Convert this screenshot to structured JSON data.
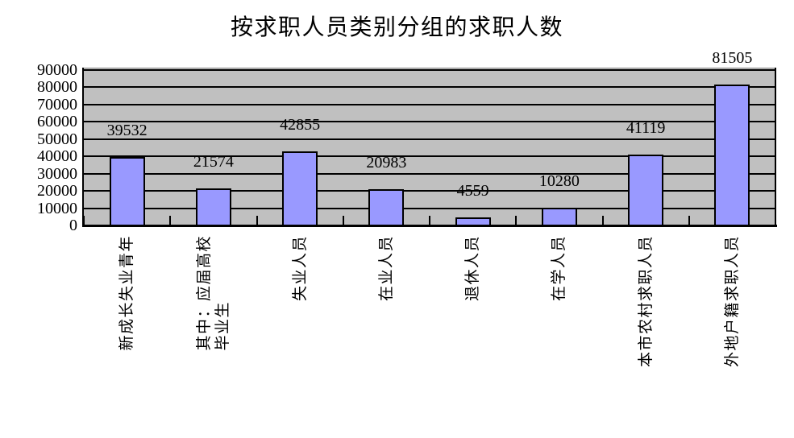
{
  "title": "按求职人员类别分组的求职人数",
  "chart_data": {
    "type": "bar",
    "title": "按求职人员类别分组的求职人数",
    "categories": [
      "新成长失业青年",
      "其中：应届高校\n毕业生",
      "失业人员",
      "在业人员",
      "退休人员",
      "在学人员",
      "本市农村求职人员",
      "外地户籍求职人员"
    ],
    "values": [
      39532,
      21574,
      42855,
      20983,
      4559,
      10280,
      41119,
      81505
    ],
    "data_labels": [
      39532,
      21574,
      42855,
      20983,
      4559,
      10280,
      41119,
      81505
    ],
    "xlabel": "",
    "ylabel": "",
    "ylim": [
      0,
      90000
    ],
    "ytick_step": 10000,
    "yticks": [
      0,
      10000,
      20000,
      30000,
      40000,
      50000,
      60000,
      70000,
      80000,
      90000
    ],
    "grid": "horizontal",
    "legend_position": "none",
    "category_label_rotation": -90,
    "colors": {
      "bar_fill": "#9999FF",
      "bar_border": "#000000",
      "plot_bg": "#C0C0C0",
      "gridline": "#000000",
      "axis": "#000000",
      "chart_bg": "#FFFFFF",
      "text": "#000000"
    }
  }
}
